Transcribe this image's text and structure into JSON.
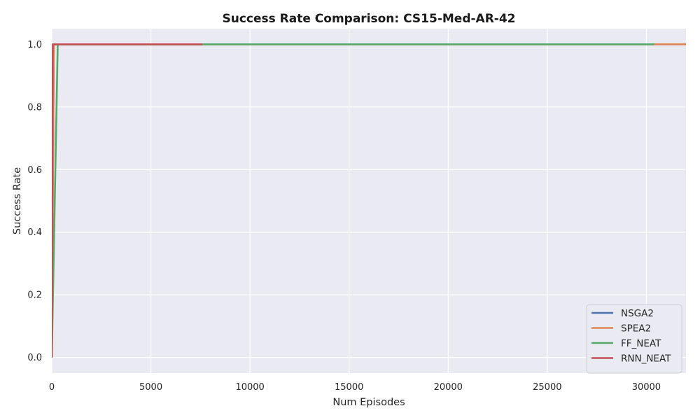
{
  "chart_data": {
    "type": "line",
    "title": "Success Rate Comparison: CS15-Med-AR-42",
    "xlabel": "Num Episodes",
    "ylabel": "Success Rate",
    "xlim": [
      0,
      32000
    ],
    "ylim": [
      -0.05,
      1.05
    ],
    "xticks": [
      0,
      5000,
      10000,
      15000,
      20000,
      25000,
      30000
    ],
    "yticks": [
      0.0,
      0.2,
      0.4,
      0.6,
      0.8,
      1.0
    ],
    "xtick_labels": [
      "0",
      "5000",
      "10000",
      "15000",
      "20000",
      "25000",
      "30000"
    ],
    "ytick_labels": [
      "0.0",
      "0.2",
      "0.4",
      "0.6",
      "0.8",
      "1.0"
    ],
    "grid": true,
    "legend_position": "bottom-right",
    "background_color": "#eaeaf2",
    "series": [
      {
        "name": "NSGA2",
        "color": "#4c72b0",
        "x": [
          0,
          100,
          7600
        ],
        "y": [
          0.0,
          1.0,
          1.0
        ]
      },
      {
        "name": "SPEA2",
        "color": "#dd8452",
        "x": [
          0,
          100,
          32000
        ],
        "y": [
          0.0,
          1.0,
          1.0
        ]
      },
      {
        "name": "FF_NEAT",
        "color": "#55a868",
        "x": [
          0,
          300,
          30400
        ],
        "y": [
          0.0,
          1.0,
          1.0
        ]
      },
      {
        "name": "RNN_NEAT",
        "color": "#c44e52",
        "x": [
          0,
          50,
          7600
        ],
        "y": [
          0.0,
          1.0,
          1.0
        ]
      }
    ]
  }
}
